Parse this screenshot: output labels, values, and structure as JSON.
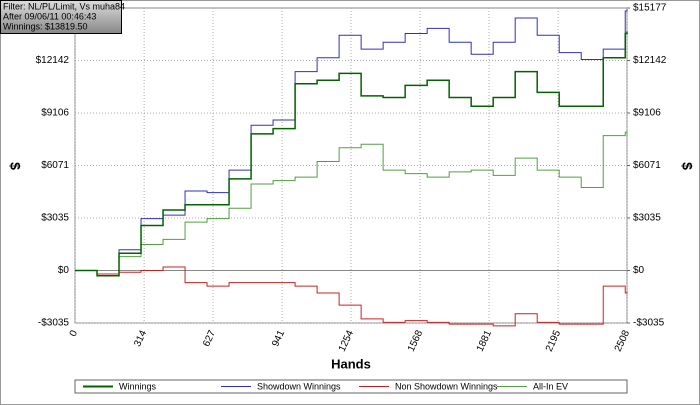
{
  "chart_data": {
    "type": "line",
    "info": [
      "Filter: NL/PL/Limit, Vs muha84",
      "After 09/06/11 00:46:43",
      "Winnings: $13819.50"
    ],
    "xlabel": "Hands",
    "ylabel": "$",
    "y2label": "$",
    "x": [
      0,
      100,
      200,
      300,
      400,
      500,
      600,
      700,
      800,
      900,
      1000,
      1100,
      1200,
      1300,
      1400,
      1500,
      1600,
      1700,
      1800,
      1900,
      2000,
      2100,
      2200,
      2300,
      2400,
      2500,
      2508
    ],
    "series": [
      {
        "name": "Winnings",
        "color": "#006400",
        "values": [
          0,
          -300,
          1000,
          2600,
          3500,
          3800,
          3800,
          5300,
          7900,
          8200,
          10800,
          11000,
          11400,
          10100,
          10000,
          10700,
          11000,
          10000,
          9500,
          10000,
          11500,
          10300,
          9500,
          9500,
          12300,
          13700,
          13819.5
        ]
      },
      {
        "name": "Showdown Winnings",
        "color": "#3030c0",
        "values": [
          0,
          -200,
          1200,
          3000,
          3200,
          4600,
          4500,
          5800,
          8400,
          8700,
          11500,
          12300,
          13600,
          12800,
          13200,
          13700,
          14000,
          13200,
          12500,
          13200,
          14600,
          13600,
          12600,
          12200,
          12800,
          15000,
          15100
        ]
      },
      {
        "name": "Non Showdown Winnings",
        "color": "#cc2020",
        "values": [
          0,
          -200,
          -100,
          0,
          200,
          -700,
          -900,
          -700,
          -700,
          -700,
          -900,
          -1300,
          -2000,
          -2800,
          -3000,
          -2900,
          -3000,
          -3100,
          -3100,
          -3200,
          -2500,
          -3000,
          -3100,
          -3100,
          -900,
          -1300,
          -1200
        ]
      },
      {
        "name": "All-In EV",
        "color": "#50a040",
        "values": [
          0,
          -300,
          800,
          1500,
          1800,
          2800,
          3000,
          3600,
          5000,
          5200,
          5400,
          6300,
          7100,
          7300,
          5800,
          5600,
          5400,
          5700,
          5800,
          5500,
          6500,
          5800,
          5400,
          4800,
          7800,
          8000,
          7800
        ]
      }
    ],
    "xlim": [
      0,
      2508
    ],
    "xticks": [
      0,
      314,
      627,
      941,
      1254,
      1568,
      1881,
      2195,
      2508
    ],
    "ylim": [
      -3035,
      15177
    ],
    "yticks": [
      {
        "value": -3035,
        "label": "-$3035"
      },
      {
        "value": 0,
        "label": "$0"
      },
      {
        "value": 3035,
        "label": "$3035"
      },
      {
        "value": 6071,
        "label": "$6071"
      },
      {
        "value": 9106,
        "label": "$9106"
      },
      {
        "value": 12142,
        "label": "$12142"
      }
    ],
    "y2lim": [
      -3035,
      15177
    ],
    "y2ticks": [
      {
        "value": -3035,
        "label": "-$3035"
      },
      {
        "value": 0,
        "label": "$0"
      },
      {
        "value": 3035,
        "label": "$3035"
      },
      {
        "value": 6071,
        "label": "$6071"
      },
      {
        "value": 9106,
        "label": "$9106"
      },
      {
        "value": 12142,
        "label": "$12142"
      },
      {
        "value": 15177,
        "label": "$15177"
      }
    ],
    "grid": true,
    "step": true
  }
}
